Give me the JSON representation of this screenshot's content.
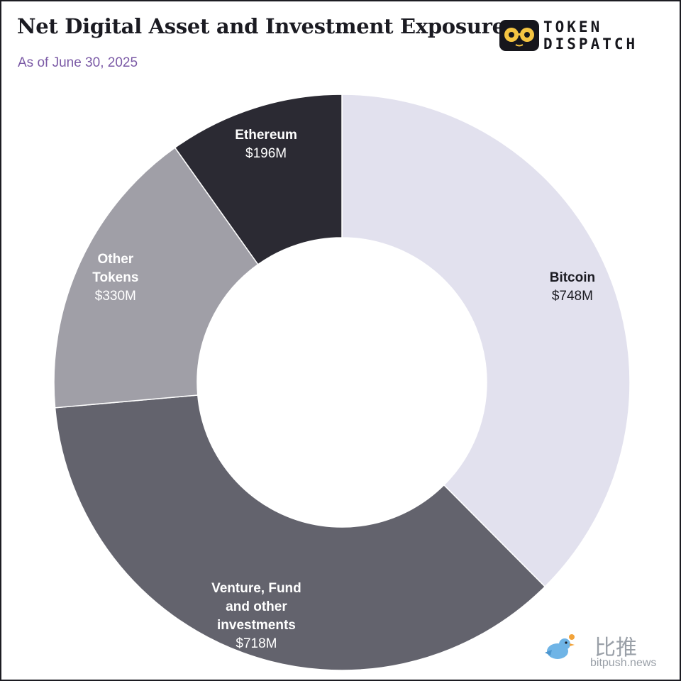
{
  "header": {
    "title": "Net Digital Asset and Investment Exposure",
    "subtitle": "As of June 30, 2025",
    "logo_line1": "TOKEN",
    "logo_line2": "DISPATCH",
    "logo_icon": "glasses-face-icon"
  },
  "watermark": {
    "chinese": "比推",
    "url": "bitpush.news",
    "icon": "bird-icon"
  },
  "chart_data": {
    "type": "pie",
    "style": "donut",
    "title": "Net Digital Asset and Investment Exposure",
    "subtitle": "As of June 30, 2025",
    "unit": "$M",
    "series": [
      {
        "slices": [
          {
            "label": "Bitcoin",
            "value": 748,
            "value_label": "$748M",
            "color": "#e2e1ee",
            "text_color": "#1b1b22"
          },
          {
            "label": "Venture, Fund and other investments",
            "value": 718,
            "value_label": "$718M",
            "color": "#63636d",
            "text_color": "#ffffff"
          },
          {
            "label": "Other Tokens",
            "value": 330,
            "value_label": "$330M",
            "color": "#a09fa7",
            "text_color": "#ffffff"
          },
          {
            "label": "Ethereum",
            "value": 196,
            "value_label": "$196M",
            "color": "#2b2a33",
            "text_color": "#ffffff"
          }
        ]
      }
    ],
    "start_angle": "12 o'clock",
    "direction": "clockwise",
    "legend": "none"
  }
}
